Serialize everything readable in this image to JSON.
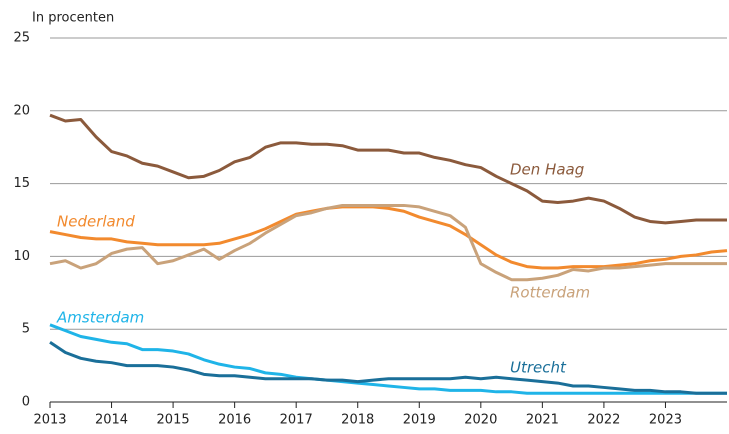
{
  "chart_data": {
    "type": "line",
    "ylabel": "In procenten",
    "x": [
      2013,
      2013.25,
      2013.5,
      2013.75,
      2014,
      2014.25,
      2014.5,
      2014.75,
      2015,
      2015.25,
      2015.5,
      2015.75,
      2016,
      2016.25,
      2016.5,
      2016.75,
      2017,
      2017.25,
      2017.5,
      2017.75,
      2018,
      2018.25,
      2018.5,
      2018.75,
      2019,
      2019.25,
      2019.5,
      2019.75,
      2020,
      2020.25,
      2020.5,
      2020.75,
      2021,
      2021.25,
      2021.5,
      2021.75,
      2022,
      2022.25,
      2022.5,
      2022.75,
      2023,
      2023.25,
      2023.5,
      2023.75,
      2024
    ],
    "series": [
      {
        "name": "Den Haag",
        "color": "#8b5a3c",
        "values": [
          19.7,
          19.3,
          19.4,
          18.2,
          17.2,
          16.9,
          16.4,
          16.2,
          15.8,
          15.4,
          15.5,
          15.9,
          16.5,
          16.8,
          17.5,
          17.8,
          17.8,
          17.7,
          17.7,
          17.6,
          17.3,
          17.3,
          17.3,
          17.1,
          17.1,
          16.8,
          16.6,
          16.3,
          16.1,
          15.5,
          15.0,
          14.5,
          13.8,
          13.7,
          13.8,
          14.0,
          13.8,
          13.3,
          12.7,
          12.4,
          12.3,
          12.4,
          12.5,
          12.5,
          12.5
        ]
      },
      {
        "name": "Nederland",
        "color": "#f28a2e",
        "values": [
          11.7,
          11.5,
          11.3,
          11.2,
          11.2,
          11.0,
          10.9,
          10.8,
          10.8,
          10.8,
          10.8,
          10.9,
          11.2,
          11.5,
          11.9,
          12.4,
          12.9,
          13.1,
          13.3,
          13.4,
          13.4,
          13.4,
          13.3,
          13.1,
          12.7,
          12.4,
          12.1,
          11.5,
          10.8,
          10.1,
          9.6,
          9.3,
          9.2,
          9.2,
          9.3,
          9.3,
          9.3,
          9.4,
          9.5,
          9.7,
          9.8,
          10.0,
          10.1,
          10.3,
          10.4
        ]
      },
      {
        "name": "Rotterdam",
        "color": "#c9a27a",
        "values": [
          9.5,
          9.7,
          9.2,
          9.5,
          10.2,
          10.5,
          10.6,
          9.5,
          9.7,
          10.1,
          10.5,
          9.8,
          10.4,
          10.9,
          11.6,
          12.2,
          12.8,
          13.0,
          13.3,
          13.5,
          13.5,
          13.5,
          13.5,
          13.5,
          13.4,
          13.1,
          12.8,
          12.0,
          9.5,
          8.9,
          8.4,
          8.4,
          8.5,
          8.7,
          9.1,
          9.0,
          9.2,
          9.2,
          9.3,
          9.4,
          9.5,
          9.5,
          9.5,
          9.5,
          9.5
        ]
      },
      {
        "name": "Amsterdam",
        "color": "#1fb4e8",
        "values": [
          5.3,
          4.9,
          4.5,
          4.3,
          4.1,
          4.0,
          3.6,
          3.6,
          3.5,
          3.3,
          2.9,
          2.6,
          2.4,
          2.3,
          2.0,
          1.9,
          1.7,
          1.6,
          1.5,
          1.4,
          1.3,
          1.2,
          1.1,
          1.0,
          0.9,
          0.9,
          0.8,
          0.8,
          0.8,
          0.7,
          0.7,
          0.6,
          0.6,
          0.6,
          0.6,
          0.6,
          0.6,
          0.6,
          0.6,
          0.6,
          0.6,
          0.6,
          0.6,
          0.6,
          0.6
        ]
      },
      {
        "name": "Utrecht",
        "color": "#1a6f99",
        "values": [
          4.1,
          3.4,
          3.0,
          2.8,
          2.7,
          2.5,
          2.5,
          2.5,
          2.4,
          2.2,
          1.9,
          1.8,
          1.8,
          1.7,
          1.6,
          1.6,
          1.6,
          1.6,
          1.5,
          1.5,
          1.4,
          1.5,
          1.6,
          1.6,
          1.6,
          1.6,
          1.6,
          1.7,
          1.6,
          1.7,
          1.6,
          1.5,
          1.4,
          1.3,
          1.1,
          1.1,
          1.0,
          0.9,
          0.8,
          0.8,
          0.7,
          0.7,
          0.6,
          0.6,
          0.6
        ]
      }
    ],
    "xlim": [
      2013,
      2024
    ],
    "xticks": [
      2013,
      2014,
      2015,
      2016,
      2017,
      2018,
      2019,
      2020,
      2021,
      2022,
      2023
    ],
    "ylim": [
      0,
      25
    ],
    "yticks": [
      0,
      5,
      10,
      15,
      20,
      25
    ],
    "grid": true
  }
}
